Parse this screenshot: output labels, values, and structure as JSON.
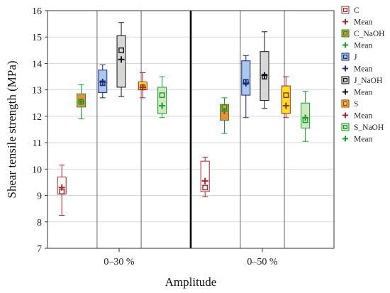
{
  "chart_data": {
    "type": "box",
    "xlabel": "Amplitude",
    "ylabel": "Shear tensile strength (MPa)",
    "ylim": [
      7,
      16
    ],
    "yticks": [
      7,
      8,
      9,
      10,
      11,
      12,
      13,
      14,
      15,
      16
    ],
    "grid": true,
    "legend_position": "right",
    "categories": [
      "0–30 %",
      "0–50 %"
    ],
    "series": [
      {
        "name": "C",
        "mean_label": "Mean",
        "color": "#a0282a",
        "fill": "#ffffff",
        "boxes": [
          {
            "category": "0–30 %",
            "min": 8.25,
            "q1": 9.05,
            "median": 9.15,
            "q3": 9.7,
            "max": 10.15,
            "mean": 9.3
          },
          {
            "category": "0–50 %",
            "min": 8.95,
            "q1": 9.15,
            "median": 9.3,
            "q3": 10.3,
            "max": 10.45,
            "mean": 9.55
          }
        ]
      },
      {
        "name": "C_NaOH",
        "mean_label": "Mean",
        "color": "#1a9a2a",
        "fill": "#f08a3c",
        "boxes": [
          {
            "category": "0–30 %",
            "min": 11.9,
            "q1": 12.35,
            "median": 12.55,
            "q3": 12.85,
            "max": 13.2,
            "mean": 12.55
          },
          {
            "category": "0–50 %",
            "min": 11.35,
            "q1": 11.85,
            "median": 12.35,
            "q3": 12.45,
            "max": 12.7,
            "mean": 12.2
          }
        ]
      },
      {
        "name": "J",
        "mean_label": "Mean",
        "color": "#1a2a80",
        "fill": "#a9c8ec",
        "boxes": [
          {
            "category": "0–30 %",
            "min": 12.7,
            "q1": 12.9,
            "median": 13.25,
            "q3": 13.75,
            "max": 13.95,
            "mean": 13.3
          },
          {
            "category": "0–50 %",
            "min": 11.95,
            "q1": 12.8,
            "median": 13.3,
            "q3": 14.1,
            "max": 14.3,
            "mean": 13.25
          }
        ]
      },
      {
        "name": "J_NaOH",
        "mean_label": "Mean",
        "color": "#111111",
        "fill": "#d7d7d7",
        "boxes": [
          {
            "category": "0–30 %",
            "min": 12.75,
            "q1": 13.1,
            "median": 14.5,
            "q3": 15.05,
            "max": 15.55,
            "mean": 14.15
          },
          {
            "category": "0–50 %",
            "min": 12.3,
            "q1": 12.6,
            "median": 13.5,
            "q3": 14.45,
            "max": 15.2,
            "mean": 13.55
          }
        ]
      },
      {
        "name": "S",
        "mean_label": "Mean",
        "color": "#a0282a",
        "fill": "#f5e21c",
        "boxes": [
          {
            "category": "0–30 %",
            "min": 12.7,
            "q1": 13.0,
            "median": 13.1,
            "q3": 13.3,
            "max": 13.65,
            "mean": 13.1
          },
          {
            "category": "0–50 %",
            "min": 11.95,
            "q1": 12.1,
            "median": 12.8,
            "q3": 13.15,
            "max": 13.5,
            "mean": 12.4
          }
        ]
      },
      {
        "name": "S_NaOH",
        "mean_label": "Mean",
        "color": "#1a9a2a",
        "fill": "#cfe8c1",
        "boxes": [
          {
            "category": "0–30 %",
            "min": 11.95,
            "q1": 12.1,
            "median": 12.8,
            "q3": 13.1,
            "max": 13.5,
            "mean": 12.4
          },
          {
            "category": "0–50 %",
            "min": 11.05,
            "q1": 11.55,
            "median": 11.85,
            "q3": 12.5,
            "max": 12.95,
            "mean": 11.95
          }
        ]
      }
    ]
  }
}
